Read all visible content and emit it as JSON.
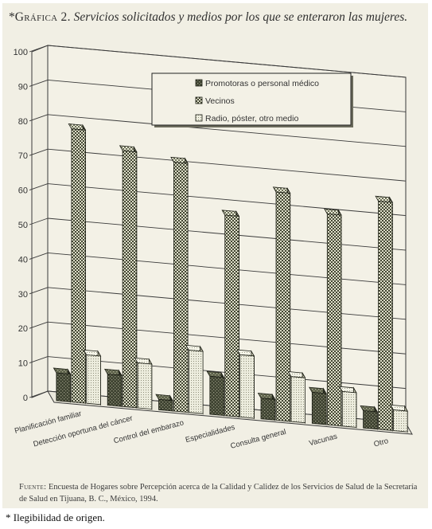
{
  "figure": {
    "title_marker": "*",
    "title_label": "Gráfica 2.",
    "title_text": "Servicios solicitados y medios por los que se enteraron las mujeres.",
    "source_label": "Fuente:",
    "source_text": "Encuesta de Hogares sobre Percepción acerca de la Calidad y Calidez de los Servicios de Salud de la Secretaría de Salud en Tijuana, B. C., México, 1994.",
    "footnote": "* Ilegibilidad de origen."
  },
  "colors": {
    "background": "#f1efe4",
    "bar_dark": "#3d4230",
    "bar_light": "#ececdd",
    "gridline": "#3a3a3a",
    "text": "#333333"
  },
  "chart_data": {
    "type": "bar",
    "style": "3d-clustered",
    "categories": [
      "Planificación familiar",
      "Detección oportuna del cáncer",
      "Control del embarazo",
      "Especialidades",
      "Consulta general",
      "Vacunas",
      "Otro"
    ],
    "series": [
      {
        "name": "Promotoras o personal médico",
        "values": [
          8,
          9,
          3,
          11,
          6,
          9,
          5
        ]
      },
      {
        "name": "Vecinos",
        "values": [
          79,
          74,
          72,
          58,
          66,
          61,
          66
        ]
      },
      {
        "name": "Radio, póster, otro medio",
        "values": [
          14,
          13,
          18,
          18,
          13,
          10,
          6
        ]
      }
    ],
    "y_ticks": [
      0,
      10,
      20,
      30,
      40,
      50,
      60,
      70,
      80,
      90,
      100
    ],
    "ylim": [
      0,
      100
    ],
    "grid": true,
    "legend_position": "top-right"
  }
}
